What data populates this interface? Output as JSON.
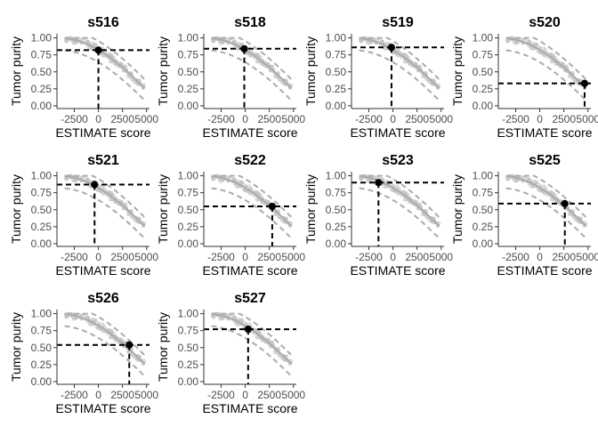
{
  "chart_data": {
    "type": "scatter",
    "layout": "facet grid, 4 columns x 3 rows",
    "xlabel": "ESTIMATE score",
    "ylabel": "Tumor purity",
    "xlim": [
      -4300,
      5300
    ],
    "ylim": [
      -0.04,
      1.06
    ],
    "x_ticks": [
      -2500,
      0,
      2500,
      5000
    ],
    "x_tick_labels": [
      "-2500",
      "0",
      "2500",
      "5000"
    ],
    "y_ticks": [
      0,
      0.25,
      0.5,
      0.75,
      1
    ],
    "y_tick_labels": [
      "0.00",
      "0.25",
      "0.50",
      "0.75",
      "1.00"
    ],
    "grid": false,
    "reference": {
      "description_color": "#c4c4c4",
      "fit_color": "#ababab",
      "purity_formula": "cos(0.6049872018 + 0.0001467884 * score)",
      "x_range": [
        -3500,
        4800
      ]
    },
    "panels": [
      {
        "title": "s516",
        "estimate_score": 0,
        "tumor_purity": 0.82
      },
      {
        "title": "s518",
        "estimate_score": -100,
        "tumor_purity": 0.84
      },
      {
        "title": "s519",
        "estimate_score": -150,
        "tumor_purity": 0.86
      },
      {
        "title": "s520",
        "estimate_score": 4650,
        "tumor_purity": 0.33
      },
      {
        "title": "s521",
        "estimate_score": -400,
        "tumor_purity": 0.87
      },
      {
        "title": "s522",
        "estimate_score": 2800,
        "tumor_purity": 0.55
      },
      {
        "title": "s523",
        "estimate_score": -1500,
        "tumor_purity": 0.9
      },
      {
        "title": "s525",
        "estimate_score": 2600,
        "tumor_purity": 0.59
      },
      {
        "title": "s526",
        "estimate_score": 3200,
        "tumor_purity": 0.54
      },
      {
        "title": "s527",
        "estimate_score": 300,
        "tumor_purity": 0.77
      }
    ]
  }
}
